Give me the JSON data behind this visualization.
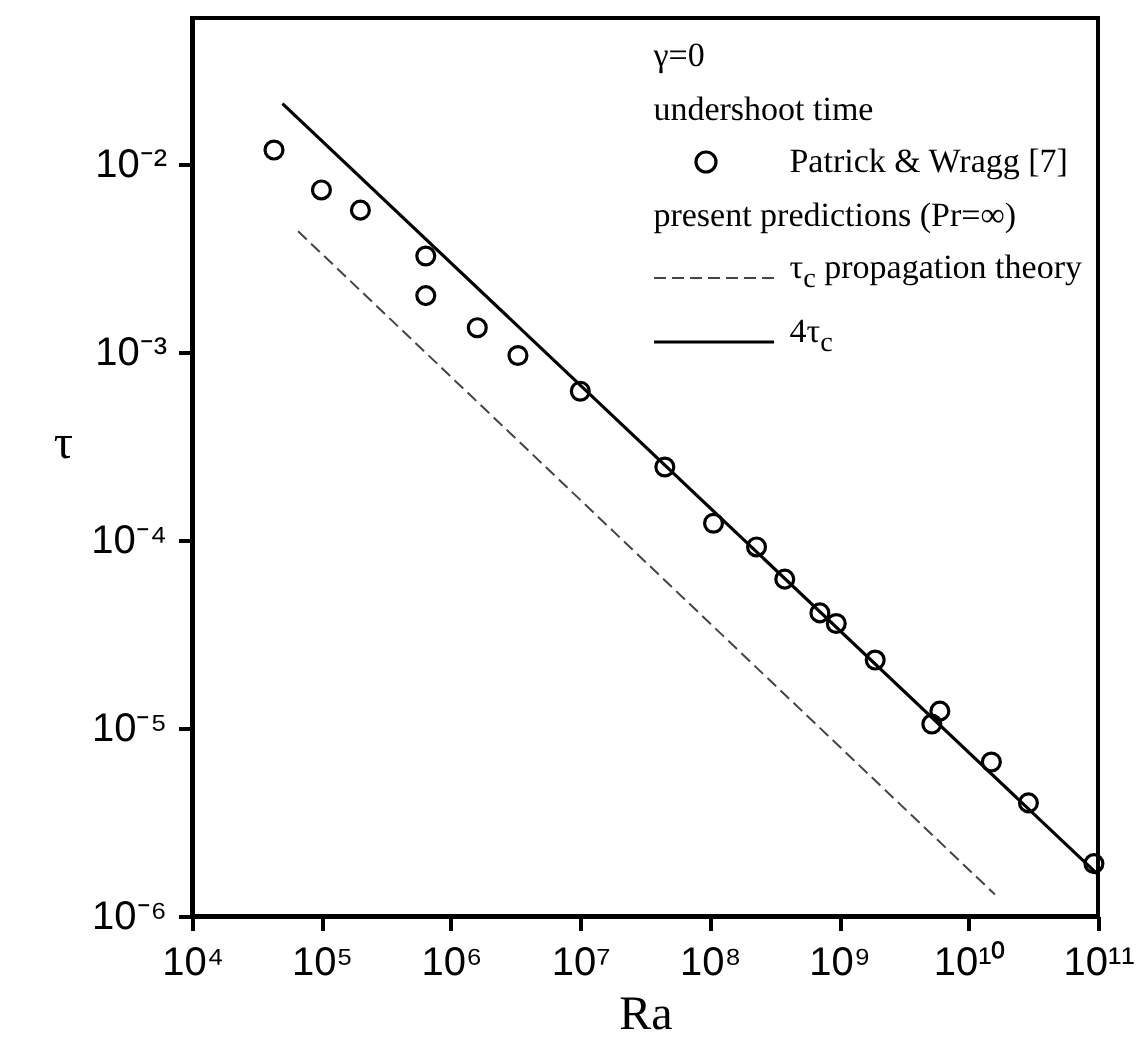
{
  "chart_data": {
    "type": "scatter",
    "xlabel": "Ra",
    "ylabel": "τ",
    "annotations": [
      "γ=0",
      "undershoot time",
      "present predictions (Pr=∞)"
    ],
    "log": "xy",
    "grid": false,
    "legend": "top right",
    "xlim": [
      10000,
      100000000000
    ],
    "ylim": [
      1e-06,
      0.06
    ],
    "xticks": [
      {
        "value": 10000,
        "label": "10⁴"
      },
      {
        "value": 100000,
        "label": "10⁵"
      },
      {
        "value": 1000000,
        "label": "10⁶"
      },
      {
        "value": 10000000,
        "label": "10⁷"
      },
      {
        "value": 100000000,
        "label": "10⁸"
      },
      {
        "value": 1000000000,
        "label": "10⁹"
      },
      {
        "value": 10000000000,
        "label": "10¹⁰"
      },
      {
        "value": 100000000000,
        "label": "10¹¹"
      }
    ],
    "yticks": [
      {
        "value": 1e-06,
        "label": "10⁻⁶"
      },
      {
        "value": 1e-05,
        "label": "10⁻⁵"
      },
      {
        "value": 0.0001,
        "label": "10⁻⁴"
      },
      {
        "value": 0.001,
        "label": "10⁻³"
      },
      {
        "value": 0.01,
        "label": "10⁻²"
      }
    ],
    "series": [
      {
        "name": "Patrick & Wragg [7]",
        "marker": "circle",
        "color": "#000000",
        "x": [
          43000,
          100000,
          200000,
          640000,
          640000,
          1600000,
          3300000,
          10000000,
          45000000,
          107000000,
          230000000,
          380000000,
          710000000,
          950000000,
          1900000000,
          5200000000,
          6000000000,
          15000000000,
          29000000000,
          93000000000
        ],
        "values": [
          0.0119,
          0.0073,
          0.0057,
          0.00325,
          0.002,
          0.00135,
          0.00096,
          0.00062,
          0.000245,
          0.000123,
          9.2e-05,
          6.2e-05,
          4.1e-05,
          3.6e-05,
          2.3e-05,
          1.05e-05,
          1.23e-05,
          6.6e-06,
          4e-06,
          1.9e-06
        ]
      },
      {
        "name": "τ$_{c}$ propagation theory",
        "type": "line",
        "line_style": "dashed",
        "marker": "none",
        "color": "#444444",
        "x": [
          66000,
          16000000000
        ],
        "values": [
          0.0044,
          1.3e-06
        ]
      },
      {
        "name": "4τ$_{c}$",
        "type": "line",
        "line_style": "solid",
        "marker": "none",
        "color": "#000000",
        "x": [
          50000,
          100000000000
        ],
        "values": [
          0.021,
          1.66e-06
        ]
      }
    ]
  }
}
